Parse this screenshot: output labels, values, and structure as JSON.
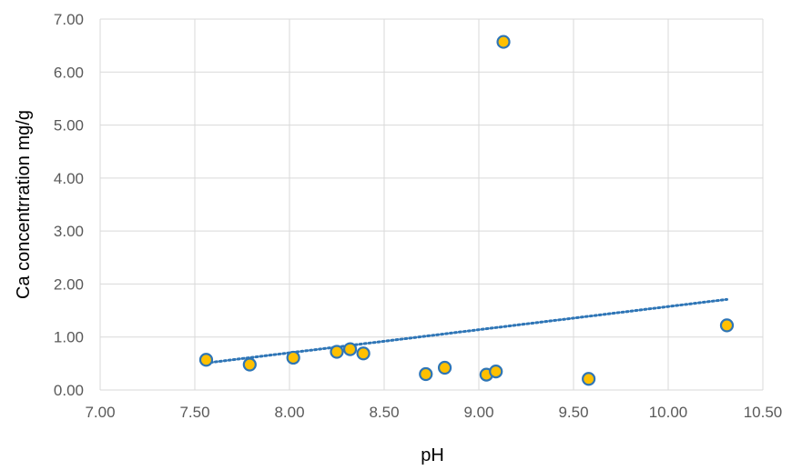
{
  "chart_data": {
    "type": "scatter",
    "title": "",
    "xlabel": "pH",
    "ylabel": "Ca concentrration mg/g",
    "xlim": [
      7.0,
      10.5
    ],
    "ylim": [
      0.0,
      7.0
    ],
    "x_ticks": [
      "7.00",
      "7.50",
      "8.00",
      "8.50",
      "9.00",
      "9.50",
      "10.00",
      "10.50"
    ],
    "y_ticks": [
      "0.00",
      "1.00",
      "2.00",
      "3.00",
      "4.00",
      "5.00",
      "6.00",
      "7.00"
    ],
    "grid": true,
    "legend": "none",
    "series": [
      {
        "points": [
          {
            "x": 7.56,
            "y": 0.57
          },
          {
            "x": 7.79,
            "y": 0.48
          },
          {
            "x": 8.02,
            "y": 0.61
          },
          {
            "x": 8.25,
            "y": 0.72
          },
          {
            "x": 8.32,
            "y": 0.77
          },
          {
            "x": 8.39,
            "y": 0.69
          },
          {
            "x": 8.72,
            "y": 0.3
          },
          {
            "x": 8.82,
            "y": 0.42
          },
          {
            "x": 9.04,
            "y": 0.29
          },
          {
            "x": 9.09,
            "y": 0.35
          },
          {
            "x": 9.13,
            "y": 6.57
          },
          {
            "x": 9.58,
            "y": 0.21
          },
          {
            "x": 10.31,
            "y": 1.22
          }
        ]
      }
    ],
    "trendline": {
      "type": "linear",
      "x": [
        7.56,
        10.31
      ],
      "y": [
        0.51,
        1.71
      ]
    },
    "colors": {
      "marker_fill": "#FFC000",
      "marker_stroke": "#2E75B6",
      "trendline": "#2E75B6",
      "grid": "#D9D9D9",
      "tick_text": "#595959"
    }
  }
}
